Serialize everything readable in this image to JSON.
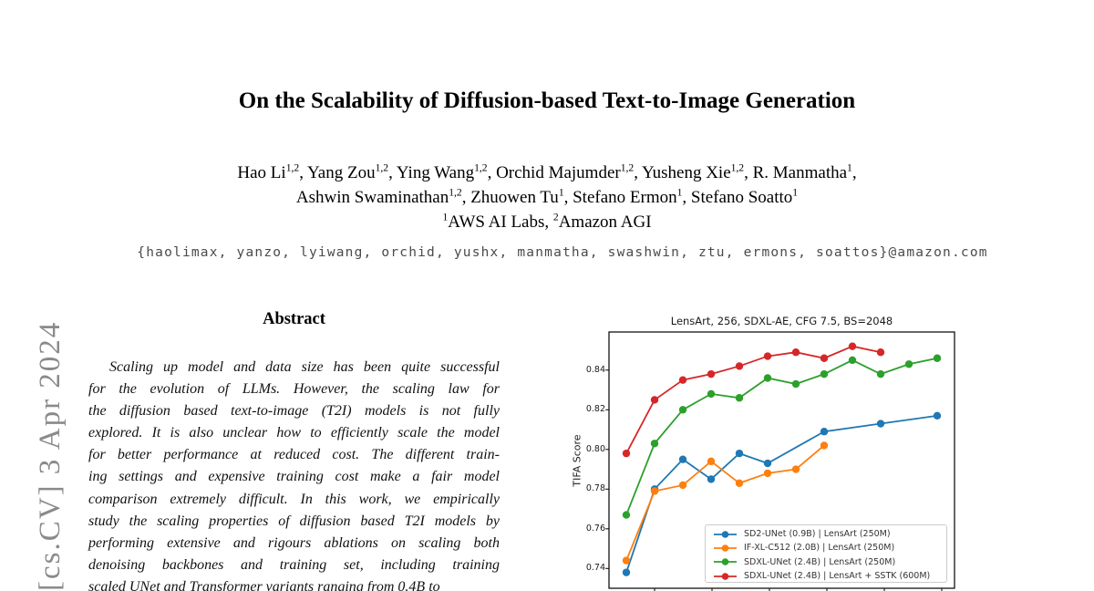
{
  "watermark": {
    "text": "[cs.CV]  3 Apr 2024",
    "color": "#8a8a8a"
  },
  "header": {
    "title": "On the Scalability of Diffusion-based Text-to-Image Generation",
    "author_lines": [
      [
        {
          "t": "Hao Li"
        },
        {
          "s": "1,2"
        },
        {
          "t": ", Yang Zou"
        },
        {
          "s": "1,2"
        },
        {
          "t": ", Ying Wang"
        },
        {
          "s": "1,2"
        },
        {
          "t": ", Orchid Majumder"
        },
        {
          "s": "1,2"
        },
        {
          "t": ", Yusheng Xie"
        },
        {
          "s": "1,2"
        },
        {
          "t": ", R. Manmatha"
        },
        {
          "s": "1"
        },
        {
          "t": ","
        }
      ],
      [
        {
          "t": "Ashwin Swaminathan"
        },
        {
          "s": "1,2"
        },
        {
          "t": ", Zhuowen Tu"
        },
        {
          "s": "1"
        },
        {
          "t": ", Stefano Ermon"
        },
        {
          "s": "1"
        },
        {
          "t": ", Stefano Soatto"
        },
        {
          "s": "1"
        }
      ],
      [
        {
          "s": "1"
        },
        {
          "t": "AWS AI Labs, "
        },
        {
          "s": "2"
        },
        {
          "t": "Amazon AGI"
        }
      ]
    ],
    "emails": "{haolimax, yanzo, lyiwang, orchid, yushx, manmatha, swashwin, ztu, ermons, soattos}@amazon.com"
  },
  "abstract": {
    "heading": "Abstract",
    "lines": [
      "Scaling up model and data size has been quite successful",
      "for the evolution of LLMs. However, the scaling law for",
      "the diffusion based text-to-image (T2I) models is not fully",
      "explored. It is also unclear how to efficiently scale the model",
      "for better performance at reduced cost. The different train-",
      "ing settings and expensive training cost make a fair model",
      "comparison extremely difficult. In this work, we empirically",
      "study the scaling properties of diffusion based T2I models by",
      "performing extensive and rigours ablations on scaling both",
      "denoising backbones and training set, including training",
      "scaled UNet and Transformer variants ranging from 0.4B to"
    ]
  },
  "chart_data": {
    "type": "line",
    "title": "LensArt, 256, SDXL-AE, CFG 7.5, BS=2048",
    "xlabel": "",
    "ylabel": "TIFA Score",
    "ylim": [
      0.731,
      0.859
    ],
    "yticks": [
      0.74,
      0.76,
      0.78,
      0.8,
      0.82,
      0.84
    ],
    "grid": false,
    "legend_position": "lower right inside plot",
    "x_axis_note": "x tick labels cropped at bottom edge of screenshot",
    "series": [
      {
        "name": "SD2-UNet (0.9B) | LensArt (250M)",
        "color": "#1f77b4",
        "x": [
          1,
          2,
          3,
          4,
          5,
          6,
          8,
          10,
          12
        ],
        "y": [
          0.738,
          0.78,
          0.795,
          0.785,
          0.798,
          0.793,
          0.809,
          0.813,
          0.817
        ]
      },
      {
        "name": "IF-XL-C512 (2.0B) | LensArt (250M)",
        "color": "#ff7f0e",
        "x": [
          1,
          2,
          3,
          4,
          5,
          6,
          7,
          8
        ],
        "y": [
          0.744,
          0.779,
          0.782,
          0.794,
          0.783,
          0.788,
          0.79,
          0.802
        ]
      },
      {
        "name": "SDXL-UNet (2.4B) | LensArt (250M)",
        "color": "#2ca02c",
        "x": [
          1,
          2,
          3,
          4,
          5,
          6,
          7,
          8,
          9,
          10,
          11,
          12
        ],
        "y": [
          0.767,
          0.803,
          0.82,
          0.828,
          0.826,
          0.836,
          0.833,
          0.838,
          0.845,
          0.838,
          0.843,
          0.846
        ]
      },
      {
        "name": "SDXL-UNet (2.4B) | LensArt + SSTK (600M)",
        "color": "#d62728",
        "x": [
          1,
          2,
          3,
          4,
          5,
          6,
          7,
          8,
          9,
          10
        ],
        "y": [
          0.798,
          0.825,
          0.835,
          0.838,
          0.842,
          0.847,
          0.849,
          0.846,
          0.852,
          0.849
        ]
      }
    ]
  }
}
